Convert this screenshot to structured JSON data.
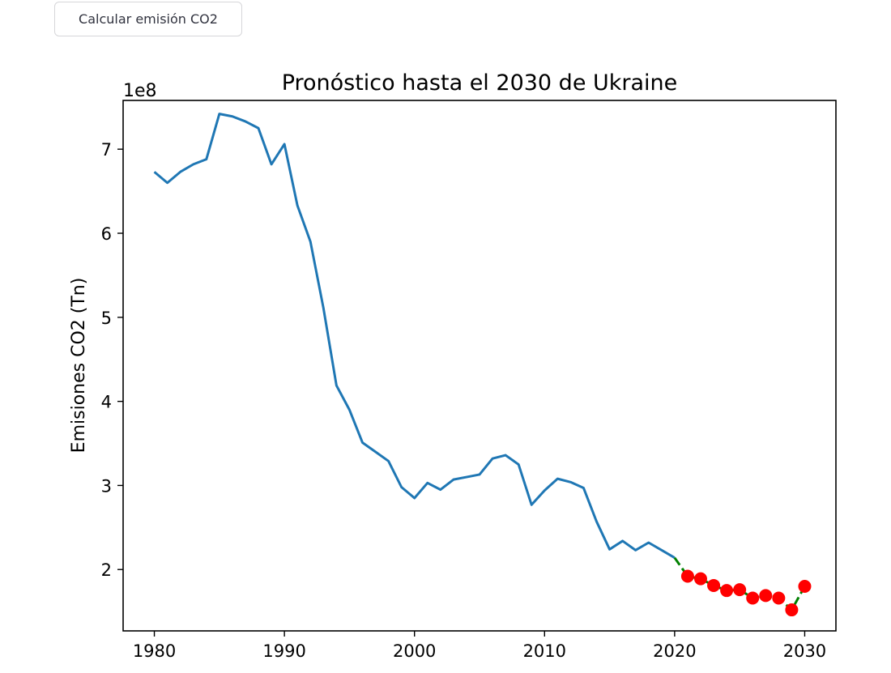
{
  "button": {
    "label": "Calcular emisión CO2"
  },
  "chart_data": {
    "type": "line",
    "title": "Pronóstico hasta el 2030 de Ukraine",
    "xlabel": "",
    "ylabel": "Emisiones CO2 (Tn)",
    "y_offset_label": "1e8",
    "xlim": [
      1977.6,
      2032.4
    ],
    "ylim": [
      127000000.0,
      758000000.0
    ],
    "x_ticks": [
      1980,
      1990,
      2000,
      2010,
      2020,
      2030
    ],
    "y_ticks": [
      200000000,
      300000000,
      400000000,
      500000000,
      600000000,
      700000000
    ],
    "y_tick_labels": [
      "2",
      "3",
      "4",
      "5",
      "6",
      "7"
    ],
    "grid": false,
    "colors": {
      "historical": "#1f77b4",
      "forecast_line": "#008000",
      "forecast_marker": "#ff0000"
    },
    "series": [
      {
        "x": [
          1980,
          1981,
          1982,
          1983,
          1984,
          1985,
          1986,
          1987,
          1988,
          1989,
          1990,
          1991,
          1992,
          1993,
          1994,
          1995,
          1996,
          1997,
          1998,
          1999,
          2000,
          2001,
          2002,
          2003,
          2004,
          2005,
          2006,
          2007,
          2008,
          2009,
          2010,
          2011,
          2012,
          2013,
          2014,
          2015,
          2016,
          2017,
          2018,
          2019,
          2020
        ],
        "values": [
          673000000,
          660000000,
          673000000,
          682000000,
          688000000,
          742000000,
          739000000,
          733000000,
          725000000,
          682000000,
          706000000,
          633000000,
          590000000,
          511000000,
          419000000,
          390000000,
          351000000,
          340000000,
          329000000,
          298000000,
          285000000,
          303000000,
          295000000,
          307000000,
          310000000,
          313000000,
          332000000,
          336000000,
          325000000,
          277000000,
          294000000,
          308000000,
          304000000,
          297000000,
          257000000,
          224000000,
          234000000,
          223000000,
          232000000,
          223000000,
          214000000
        ]
      },
      {
        "x": [
          2020,
          2021,
          2022,
          2023,
          2024,
          2025,
          2026,
          2027,
          2028,
          2029,
          2030
        ],
        "values": [
          214000000,
          192000000,
          189000000,
          181000000,
          175000000,
          176000000,
          166000000,
          169000000,
          166000000,
          152000000,
          180000000
        ],
        "markers_from_index": 1
      }
    ]
  }
}
